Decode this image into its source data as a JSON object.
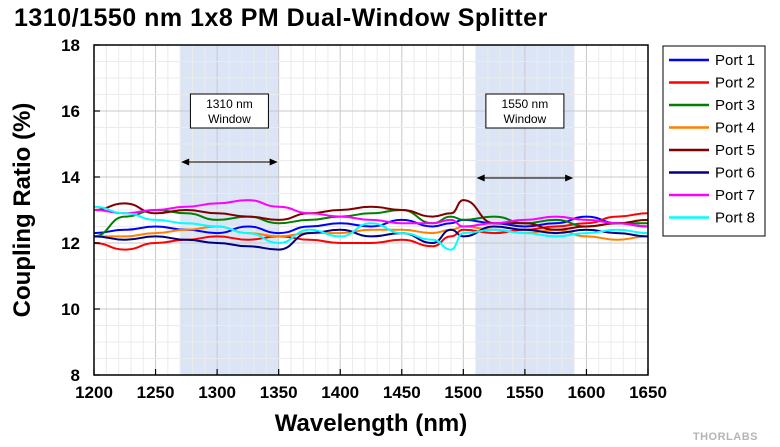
{
  "chart_data": {
    "type": "line",
    "title": "1310/1550 nm 1x8 PM Dual-Window Splitter",
    "xlabel": "Wavelength (nm)",
    "ylabel": "Coupling Ratio (%)",
    "xlim": [
      1200,
      1650
    ],
    "ylim": [
      8,
      18
    ],
    "xticks": [
      1200,
      1250,
      1300,
      1350,
      1400,
      1450,
      1500,
      1550,
      1600,
      1650
    ],
    "yticks": [
      8,
      10,
      12,
      14,
      16,
      18
    ],
    "grid": true,
    "legend_position": "right",
    "bands": [
      {
        "x0": 1270,
        "x1": 1350,
        "label_line1": "1310 nm",
        "label_line2": "Window",
        "color": "#dbe5f5"
      },
      {
        "x0": 1510,
        "x1": 1590,
        "label_line1": "1550 nm",
        "label_line2": "Window",
        "color": "#dbe5f5"
      }
    ],
    "x": [
      1200,
      1225,
      1250,
      1275,
      1300,
      1325,
      1350,
      1375,
      1400,
      1425,
      1450,
      1475,
      1490,
      1500,
      1525,
      1550,
      1575,
      1600,
      1625,
      1650
    ],
    "series": [
      {
        "name": "Port 1",
        "color": "#0000ff",
        "values": [
          12.3,
          12.4,
          12.5,
          12.4,
          12.3,
          12.5,
          12.3,
          12.5,
          12.6,
          12.5,
          12.7,
          12.5,
          12.6,
          12.7,
          12.6,
          12.5,
          12.6,
          12.8,
          12.6,
          12.5
        ]
      },
      {
        "name": "Port 2",
        "color": "#ff0000",
        "values": [
          12.0,
          11.8,
          12.0,
          12.1,
          12.2,
          12.1,
          12.2,
          12.1,
          12.0,
          12.0,
          12.1,
          11.9,
          12.2,
          12.4,
          12.3,
          12.4,
          12.5,
          12.6,
          12.8,
          12.9
        ]
      },
      {
        "name": "Port 3",
        "color": "#008000",
        "values": [
          12.2,
          12.8,
          13.0,
          12.9,
          12.7,
          12.8,
          12.6,
          12.7,
          12.8,
          12.9,
          13.0,
          12.6,
          12.8,
          12.7,
          12.8,
          12.6,
          12.7,
          12.5,
          12.6,
          12.6
        ]
      },
      {
        "name": "Port 4",
        "color": "#ff8000",
        "values": [
          12.2,
          12.2,
          12.3,
          12.4,
          12.5,
          12.3,
          12.2,
          12.3,
          12.3,
          12.4,
          12.4,
          12.3,
          12.4,
          12.5,
          12.4,
          12.3,
          12.4,
          12.2,
          12.1,
          12.2
        ]
      },
      {
        "name": "Port 5",
        "color": "#800000",
        "values": [
          13.0,
          13.2,
          12.9,
          13.0,
          12.9,
          12.8,
          12.7,
          12.9,
          13.0,
          13.1,
          13.0,
          12.8,
          12.9,
          13.3,
          12.6,
          12.6,
          12.4,
          12.5,
          12.6,
          12.7
        ]
      },
      {
        "name": "Port 6",
        "color": "#000080",
        "values": [
          12.2,
          12.1,
          12.2,
          12.1,
          12.0,
          11.9,
          11.8,
          12.3,
          12.4,
          12.2,
          12.3,
          12.0,
          12.4,
          12.2,
          12.5,
          12.4,
          12.3,
          12.4,
          12.3,
          12.2
        ]
      },
      {
        "name": "Port 7",
        "color": "#ff00ff",
        "values": [
          13.0,
          12.9,
          13.0,
          13.1,
          13.2,
          13.3,
          13.1,
          12.9,
          12.8,
          12.7,
          12.6,
          12.6,
          12.7,
          12.5,
          12.6,
          12.7,
          12.8,
          12.7,
          12.6,
          12.5
        ]
      },
      {
        "name": "Port 8",
        "color": "#00ffff",
        "values": [
          13.1,
          12.9,
          12.7,
          12.6,
          12.5,
          12.3,
          12.0,
          12.4,
          12.2,
          12.6,
          12.3,
          12.1,
          11.8,
          12.3,
          12.4,
          12.3,
          12.2,
          12.3,
          12.4,
          12.3
        ]
      }
    ]
  },
  "watermark": "THORLABS"
}
